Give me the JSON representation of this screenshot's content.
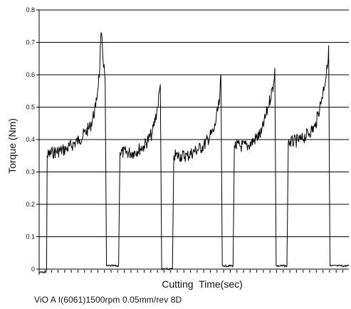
{
  "chart_data": {
    "type": "line",
    "title": "",
    "xlabel": "Cutting  Time(sec)",
    "ylabel": "Torque (Nm)",
    "ylim": [
      0,
      0.8
    ],
    "y_ticks": [
      "0",
      "0.1",
      "0.2",
      "0.3",
      "0.4",
      "0.5",
      "0.6",
      "0.7",
      "0.8"
    ],
    "x_tick_labels_shown": false,
    "grid": "horizontal",
    "series": [
      {
        "color": "#000000",
        "x": [
          0.0,
          0.3,
          0.5,
          0.55,
          0.6,
          1.0,
          2.0,
          3.0,
          3.8,
          4.2,
          4.5,
          4.6,
          4.9,
          5.0,
          5.1,
          5.9,
          6.0,
          7.0,
          7.8,
          8.4,
          8.8,
          9.0,
          9.1,
          9.9,
          10.0,
          11.0,
          12.2,
          13.0,
          13.4,
          13.5,
          13.6,
          14.4,
          14.5,
          15.5,
          16.5,
          17.0,
          17.4,
          17.5,
          17.6,
          18.4,
          18.5,
          19.5,
          20.5,
          21.0,
          21.4,
          21.5,
          21.6,
          23.0
        ],
        "y": [
          -0.01,
          -0.01,
          -0.01,
          0.0,
          0.35,
          0.36,
          0.37,
          0.4,
          0.44,
          0.5,
          0.62,
          0.73,
          0.58,
          0.01,
          0.01,
          0.01,
          0.36,
          0.36,
          0.38,
          0.42,
          0.5,
          0.57,
          0.0,
          0.0,
          0.35,
          0.35,
          0.38,
          0.43,
          0.52,
          0.6,
          0.01,
          0.01,
          0.38,
          0.38,
          0.42,
          0.5,
          0.57,
          0.62,
          0.01,
          0.01,
          0.39,
          0.4,
          0.44,
          0.53,
          0.62,
          0.69,
          0.01,
          0.01
        ]
      }
    ],
    "xlim": [
      0,
      23
    ]
  },
  "caption": "ViO A I(6061)1500rpm 0.05mm/rev 8D"
}
